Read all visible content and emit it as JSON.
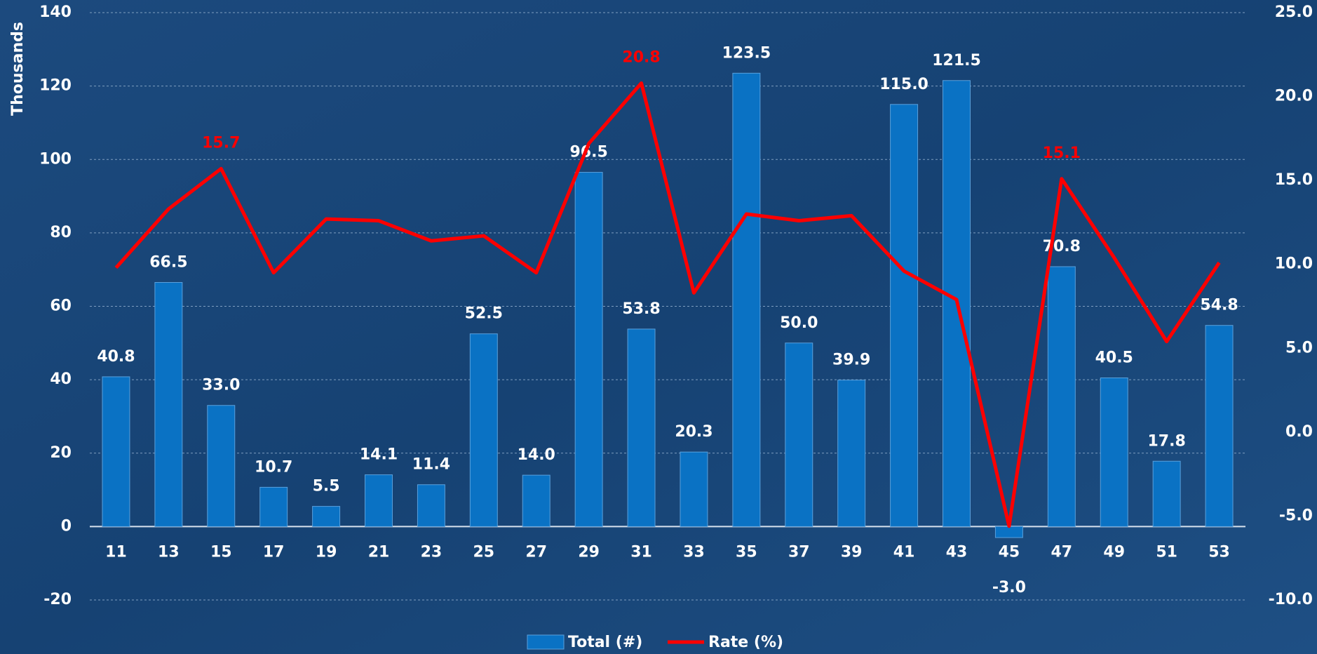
{
  "chart_data": {
    "type": "bar_line",
    "y_label": "Thousands",
    "categories": [
      "11",
      "13",
      "15",
      "17",
      "19",
      "21",
      "23",
      "25",
      "27",
      "29",
      "31",
      "33",
      "35",
      "37",
      "39",
      "41",
      "43",
      "45",
      "47",
      "49",
      "51",
      "53"
    ],
    "series": [
      {
        "name": "Total (#)",
        "type": "bar",
        "color": "#0a72c4",
        "values": [
          40.8,
          66.5,
          33.0,
          10.7,
          5.5,
          14.1,
          11.4,
          52.5,
          14.0,
          96.5,
          53.8,
          20.3,
          123.5,
          50.0,
          39.9,
          115.0,
          121.5,
          -3.0,
          70.8,
          40.5,
          17.8,
          54.8
        ],
        "value_labels": [
          "40.8",
          "66.5",
          "33.0",
          "10.7",
          "5.5",
          "14.1",
          "11.4",
          "52.5",
          "14.0",
          "96.5",
          "53.8",
          "20.3",
          "123.5",
          "50.0",
          "39.9",
          "115.0",
          "121.5",
          "-3.0",
          "70.8",
          "40.5",
          "17.8",
          "54.8"
        ]
      },
      {
        "name": "Rate (%)",
        "type": "line",
        "axis": "y2",
        "color": "#ff0000",
        "values": [
          9.8,
          13.3,
          15.7,
          9.5,
          12.7,
          12.6,
          11.4,
          11.7,
          9.5,
          17.2,
          20.8,
          8.3,
          13.0,
          12.6,
          12.9,
          9.6,
          7.9,
          -5.6,
          15.1,
          10.4,
          5.4,
          10.1
        ],
        "value_labels": [
          null,
          null,
          "15.7",
          null,
          null,
          null,
          null,
          null,
          null,
          null,
          "20.8",
          null,
          null,
          null,
          null,
          null,
          null,
          null,
          "15.1",
          null,
          null,
          null
        ]
      }
    ],
    "ylim": [
      -20,
      140
    ],
    "yticks": [
      -20,
      0,
      20,
      40,
      60,
      80,
      100,
      120,
      140
    ],
    "y2lim": [
      -10,
      25
    ],
    "y2ticks": [
      {
        "value": -10,
        "label": "-10.0"
      },
      {
        "value": -5,
        "label": "-5.0"
      },
      {
        "value": 0,
        "label": "0.0"
      },
      {
        "value": 5,
        "label": "5.0"
      },
      {
        "value": 10,
        "label": "10.0"
      },
      {
        "value": 15,
        "label": "15.0"
      },
      {
        "value": 20,
        "label": "20.0"
      },
      {
        "value": 25,
        "label": "25.0"
      }
    ],
    "grid": true,
    "legend": "bottom"
  }
}
